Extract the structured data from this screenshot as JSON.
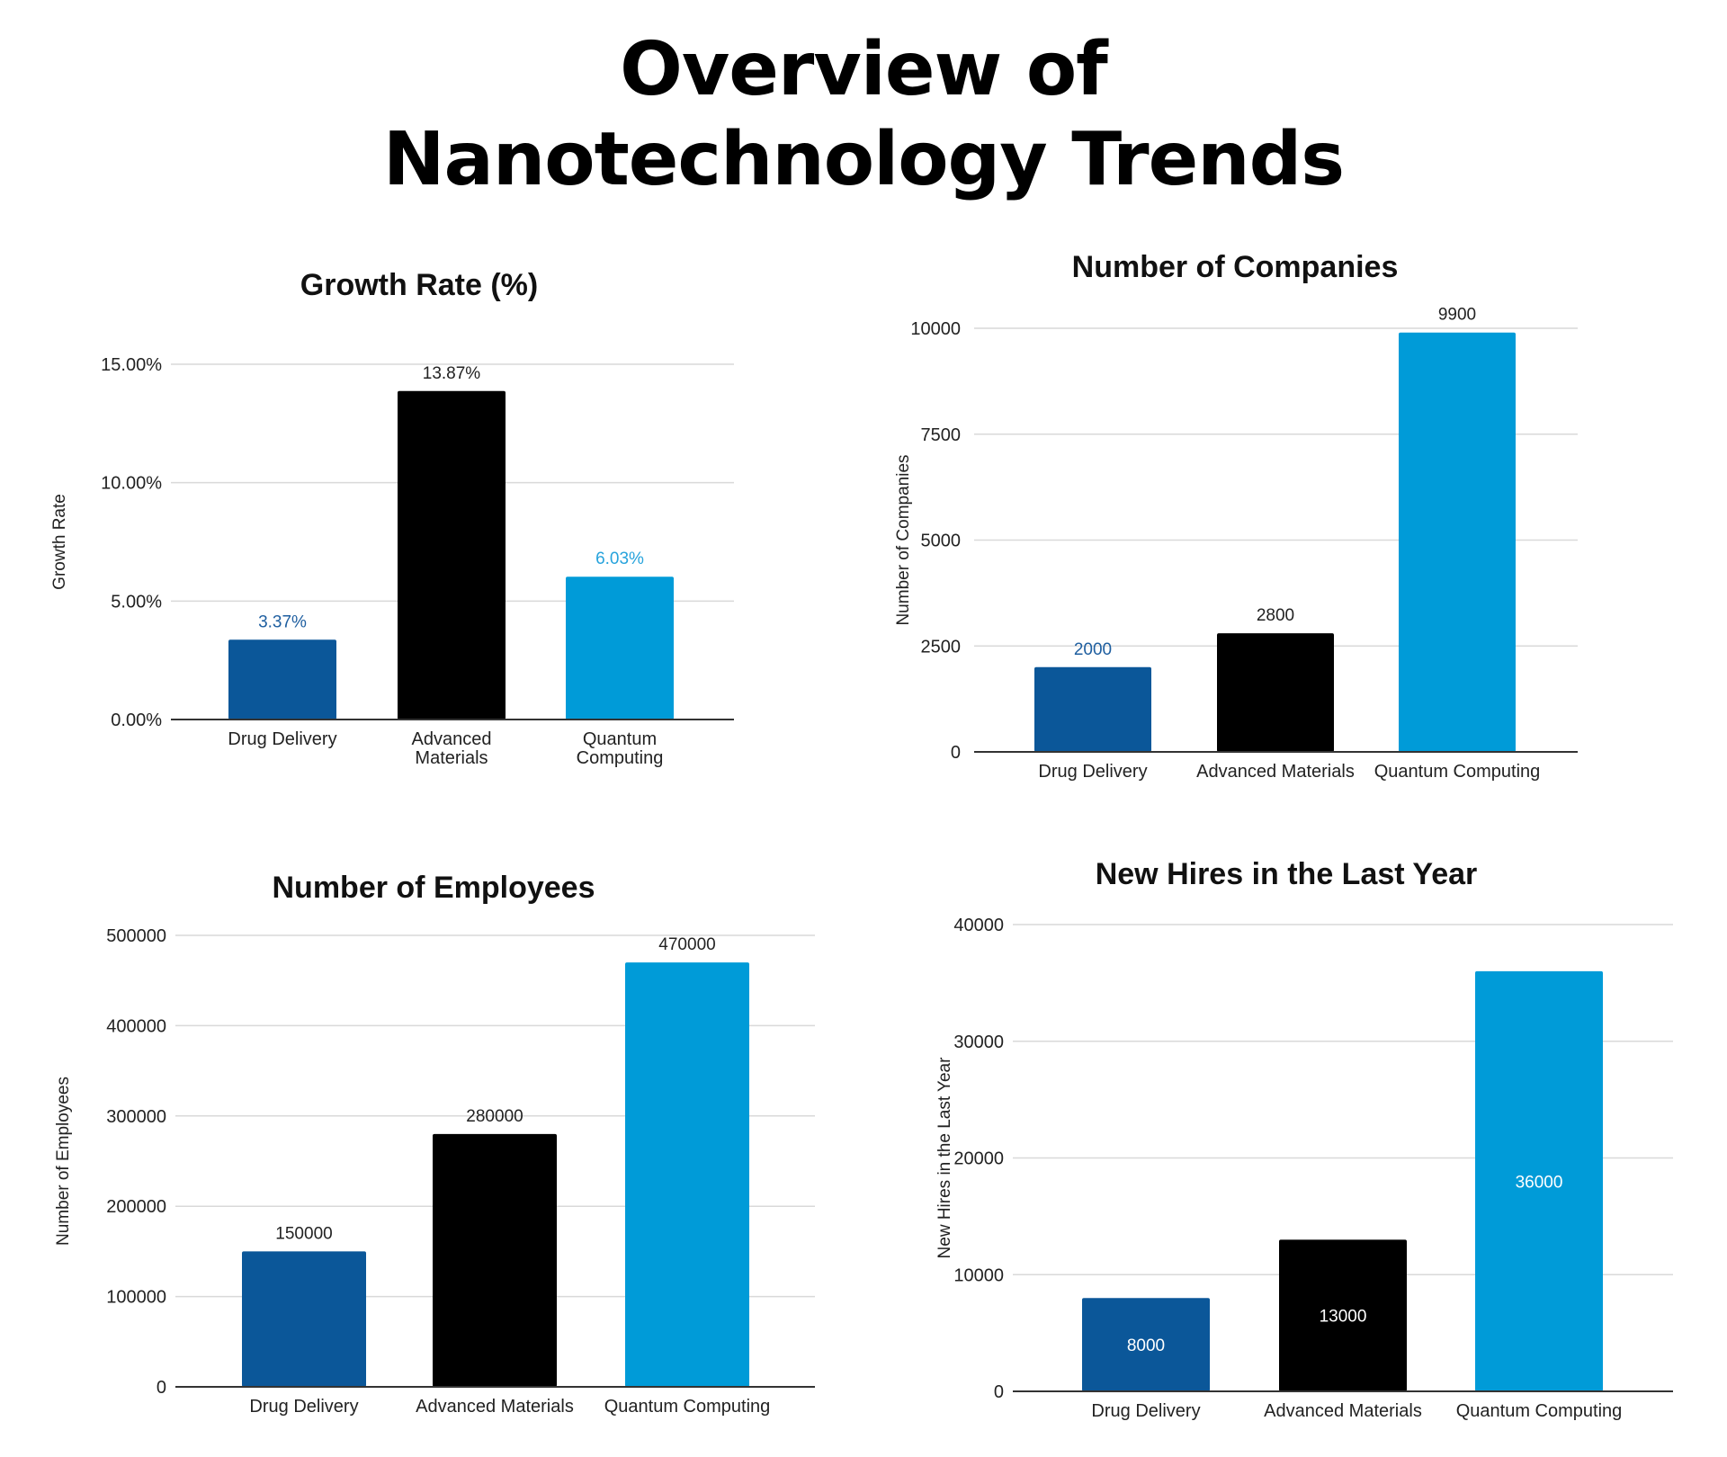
{
  "page": {
    "title_line1": "Overview of",
    "title_line2": "Nanotechnology Trends"
  },
  "colors": {
    "drug_delivery": "#0b5799",
    "advanced_materials": "#000000",
    "quantum_computing": "#009bd8",
    "gridline": "#d9d9d9",
    "axis": "#333333"
  },
  "chart_data": [
    {
      "type": "bar",
      "title": "Growth Rate (%)",
      "xlabel": "",
      "ylabel": "Growth Rate",
      "categories": [
        "Drug Delivery",
        "Advanced Materials",
        "Quantum Computing"
      ],
      "category_lines": [
        [
          "Drug Delivery"
        ],
        [
          "Advanced",
          "Materials"
        ],
        [
          "Quantum",
          "Computing"
        ]
      ],
      "values": [
        3.37,
        13.87,
        6.03
      ],
      "value_labels": [
        "3.37%",
        "13.87%",
        "6.03%"
      ],
      "ylim": [
        0,
        15
      ],
      "yticks": [
        0,
        5,
        10,
        15
      ],
      "ytick_labels": [
        "0.00%",
        "5.00%",
        "10.00%",
        "15.00%"
      ],
      "label_position": "above",
      "grid": true,
      "legend": "none"
    },
    {
      "type": "bar",
      "title": "Number of Companies",
      "xlabel": "",
      "ylabel": "Number of Companies",
      "categories": [
        "Drug Delivery",
        "Advanced Materials",
        "Quantum Computing"
      ],
      "category_lines": [
        [
          "Drug Delivery"
        ],
        [
          "Advanced Materials"
        ],
        [
          "Quantum Computing"
        ]
      ],
      "values": [
        2000,
        2800,
        9900
      ],
      "value_labels": [
        "2000",
        "2800",
        "9900"
      ],
      "ylim": [
        0,
        10000
      ],
      "yticks": [
        0,
        2500,
        5000,
        7500,
        10000
      ],
      "ytick_labels": [
        "0",
        "2500",
        "5000",
        "7500",
        "10000"
      ],
      "label_position": "above",
      "grid": true,
      "legend": "none"
    },
    {
      "type": "bar",
      "title": "Number of Employees",
      "xlabel": "",
      "ylabel": "Number of Employees",
      "categories": [
        "Drug Delivery",
        "Advanced Materials",
        "Quantum Computing"
      ],
      "category_lines": [
        [
          "Drug Delivery"
        ],
        [
          "Advanced Materials"
        ],
        [
          "Quantum Computing"
        ]
      ],
      "values": [
        150000,
        280000,
        470000
      ],
      "value_labels": [
        "150000",
        "280000",
        "470000"
      ],
      "ylim": [
        0,
        500000
      ],
      "yticks": [
        0,
        100000,
        200000,
        300000,
        400000,
        500000
      ],
      "ytick_labels": [
        "0",
        "100000",
        "200000",
        "300000",
        "400000",
        "500000"
      ],
      "label_position": "above",
      "grid": true,
      "legend": "none"
    },
    {
      "type": "bar",
      "title": "New Hires in the Last Year",
      "xlabel": "",
      "ylabel": "New Hires in the Last Year",
      "categories": [
        "Drug Delivery",
        "Advanced Materials",
        "Quantum Computing"
      ],
      "category_lines": [
        [
          "Drug Delivery"
        ],
        [
          "Advanced Materials"
        ],
        [
          "Quantum Computing"
        ]
      ],
      "values": [
        8000,
        13000,
        36000
      ],
      "value_labels": [
        "8000",
        "13000",
        "36000"
      ],
      "ylim": [
        0,
        40000
      ],
      "yticks": [
        0,
        10000,
        20000,
        30000,
        40000
      ],
      "ytick_labels": [
        "0",
        "10000",
        "20000",
        "30000",
        "40000"
      ],
      "label_position": "inside",
      "grid": true,
      "legend": "none"
    }
  ]
}
